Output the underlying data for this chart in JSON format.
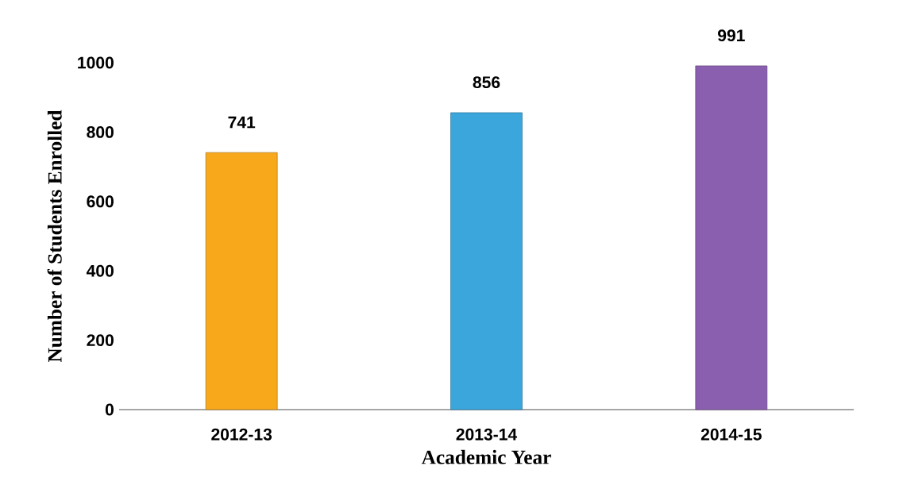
{
  "chart_data": {
    "type": "bar",
    "xlabel": "Academic Year",
    "ylabel": "Number of Students Enrolled",
    "categories": [
      "2012-13",
      "2013-14",
      "2014-15"
    ],
    "values": [
      741,
      856,
      991
    ],
    "colors": [
      "#f7a81b",
      "#3aa6dc",
      "#8a5fb0"
    ],
    "ylim": [
      0,
      1000
    ],
    "yticks": [
      0,
      200,
      400,
      600,
      800,
      1000
    ],
    "data_labels": true,
    "grid": false
  }
}
